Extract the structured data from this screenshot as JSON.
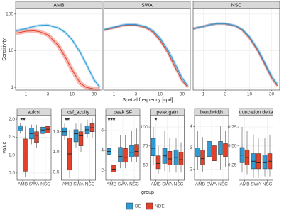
{
  "chart_data": [
    {
      "type": "line",
      "y_label": "Sensitivity",
      "x_label": "Spatial frequency [cpd]",
      "xlog": true,
      "ylog": true,
      "grid": true,
      "xlim": [
        0.6,
        45
      ],
      "ylim": [
        0.84,
        142
      ],
      "xticks": [
        1,
        3,
        10,
        30
      ],
      "yticks": [
        1,
        10,
        100
      ],
      "x": [
        0.6,
        1,
        1.5,
        2,
        3,
        5,
        7,
        10,
        15,
        20,
        30,
        40
      ],
      "panels": [
        {
          "title": "AMB",
          "series": [
            {
              "color": "#2e9bd6",
              "values": [
                35,
                40,
                46,
                49,
                50,
                42,
                32,
                20,
                9,
                4.5,
                1.6,
                1.0
              ]
            },
            {
              "color": "#e5402a",
              "values": [
                30,
                34,
                35,
                33,
                27,
                14,
                7,
                3,
                1.3,
                1.0,
                0.9,
                0.9
              ]
            }
          ]
        },
        {
          "title": "SWA",
          "series": [
            {
              "color": "#2e9bd6",
              "values": [
                38,
                44,
                50,
                52,
                52,
                45,
                35,
                22,
                10,
                5,
                1.8,
                1.1
              ]
            },
            {
              "color": "#e5402a",
              "values": [
                36,
                42,
                48,
                50,
                50,
                42,
                32,
                19,
                8.5,
                4,
                1.5,
                1.0
              ]
            }
          ]
        },
        {
          "title": "NSC",
          "series": [
            {
              "color": "#2e9bd6",
              "values": [
                40,
                46,
                52,
                55,
                55,
                48,
                38,
                24,
                11,
                5.5,
                2,
                1.2
              ]
            },
            {
              "color": "#e5402a",
              "values": [
                40,
                46,
                52,
                55,
                54,
                47,
                36,
                22,
                10,
                5,
                1.8,
                1.1
              ]
            }
          ]
        }
      ]
    },
    {
      "type": "box",
      "y_label": "value",
      "x_label": "group",
      "categories": [
        "AMB",
        "SWA",
        "NSC"
      ],
      "series": [
        {
          "name": "DE",
          "color": "#2e9bd6"
        },
        {
          "name": "NDE",
          "color": "#e5402a"
        }
      ],
      "grid": true,
      "panels": [
        {
          "title": "aulcsf",
          "annotation": "**",
          "ylim": [
            0.3,
            2.1
          ],
          "yticks": [
            {
              "value": 0.5,
              "label": "0.5"
            },
            {
              "value": 1,
              "label": "1.0"
            },
            {
              "value": 1.5,
              "label": "1.5"
            },
            {
              "value": 2,
              "label": "2.0"
            }
          ],
          "boxes": [
            [
              [
                1.6,
                1.68,
                1.75,
                1.82,
                1.9
              ],
              [
                0.4,
                0.55,
                1.0,
                1.45,
                1.8
              ]
            ],
            [
              [
                1.3,
                1.45,
                1.6,
                1.75,
                1.85
              ],
              [
                1.2,
                1.35,
                1.55,
                1.65,
                1.85
              ]
            ],
            [
              [
                1.5,
                1.6,
                1.7,
                1.78,
                1.9
              ],
              [
                1.5,
                1.62,
                1.72,
                1.8,
                1.9
              ]
            ]
          ]
        },
        {
          "title": "csf_acuity",
          "annotation": "**",
          "ylim": [
            0.3,
            1.9
          ],
          "yticks": [
            {
              "value": 0.5,
              "label": "0.5"
            },
            {
              "value": 1,
              "label": "1.0"
            },
            {
              "value": 1.5,
              "label": "1.5"
            }
          ],
          "boxes": [
            [
              [
                1.3,
                1.4,
                1.5,
                1.6,
                1.7
              ],
              [
                0.35,
                0.55,
                0.95,
                1.35,
                1.55
              ]
            ],
            [
              [
                1.1,
                1.25,
                1.45,
                1.55,
                1.7
              ],
              [
                1.0,
                1.15,
                1.4,
                1.5,
                1.7
              ]
            ],
            [
              [
                1.35,
                1.45,
                1.55,
                1.65,
                1.8
              ],
              [
                1.35,
                1.5,
                1.6,
                1.7,
                1.85
              ]
            ]
          ]
        },
        {
          "title": "peak SF",
          "annotation": "***",
          "ylim": [
            1,
            7.5
          ],
          "yticks": [
            2,
            4,
            6
          ],
          "boxes": [
            [
              [
                3.3,
                3.6,
                3.9,
                4.2,
                4.4
              ],
              [
                1.5,
                1.8,
                2.1,
                2.5,
                3.1
              ]
            ],
            [
              [
                2.2,
                2.8,
                3.4,
                4.3,
                5.5
              ],
              [
                2.2,
                2.8,
                3.3,
                4.2,
                5.5
              ]
            ],
            [
              [
                2.8,
                3.3,
                3.8,
                4.5,
                6
              ],
              [
                2.8,
                3.4,
                3.9,
                4.6,
                6.2
              ]
            ]
          ]
        },
        {
          "title": "peak gain",
          "annotation": "*",
          "ylim": [
            30,
            115
          ],
          "yticks": [
            50,
            75,
            100
          ],
          "boxes": [
            [
              [
                50,
                62,
                72,
                85,
                100
              ],
              [
                38,
                45,
                52,
                62,
                75
              ]
            ],
            [
              [
                42,
                52,
                62,
                72,
                95
              ],
              [
                40,
                50,
                58,
                68,
                85
              ]
            ],
            [
              [
                40,
                50,
                60,
                70,
                85
              ],
              [
                40,
                50,
                57,
                67,
                80
              ]
            ]
          ]
        },
        {
          "title": "bandwidth",
          "ylim": [
            1.5,
            4.5
          ],
          "yticks": [
            2,
            3,
            4
          ],
          "boxes": [
            [
              [
                2.0,
                2.6,
                2.8,
                3.0,
                3.8
              ],
              [
                1.9,
                2.2,
                2.5,
                2.9,
                3.5
              ]
            ],
            [
              [
                2.2,
                2.6,
                2.9,
                3.3,
                4.0
              ],
              [
                2.0,
                2.4,
                2.8,
                3.1,
                3.7
              ]
            ],
            [
              [
                2.0,
                2.7,
                3.0,
                3.3,
                4.0
              ],
              [
                2.1,
                2.6,
                2.9,
                3.2,
                3.8
              ]
            ]
          ]
        },
        {
          "title": "truncation delta",
          "ylim": [
            0.05,
            0.9
          ],
          "yticks": [
            {
              "value": 0.25,
              "label": "0.25"
            },
            {
              "value": 0.5,
              "label": "0.50"
            },
            {
              "value": 0.75,
              "label": "0.75"
            }
          ],
          "boxes": [
            [
              [
                0.15,
                0.28,
                0.38,
                0.48,
                0.75
              ],
              [
                0.12,
                0.25,
                0.35,
                0.45,
                0.7
              ]
            ],
            [
              [
                0.08,
                0.2,
                0.3,
                0.4,
                0.65
              ],
              [
                0.08,
                0.2,
                0.28,
                0.4,
                0.6
              ]
            ],
            [
              [
                0.1,
                0.2,
                0.28,
                0.38,
                0.6
              ],
              [
                0.1,
                0.2,
                0.3,
                0.4,
                0.65
              ]
            ]
          ]
        }
      ]
    }
  ]
}
